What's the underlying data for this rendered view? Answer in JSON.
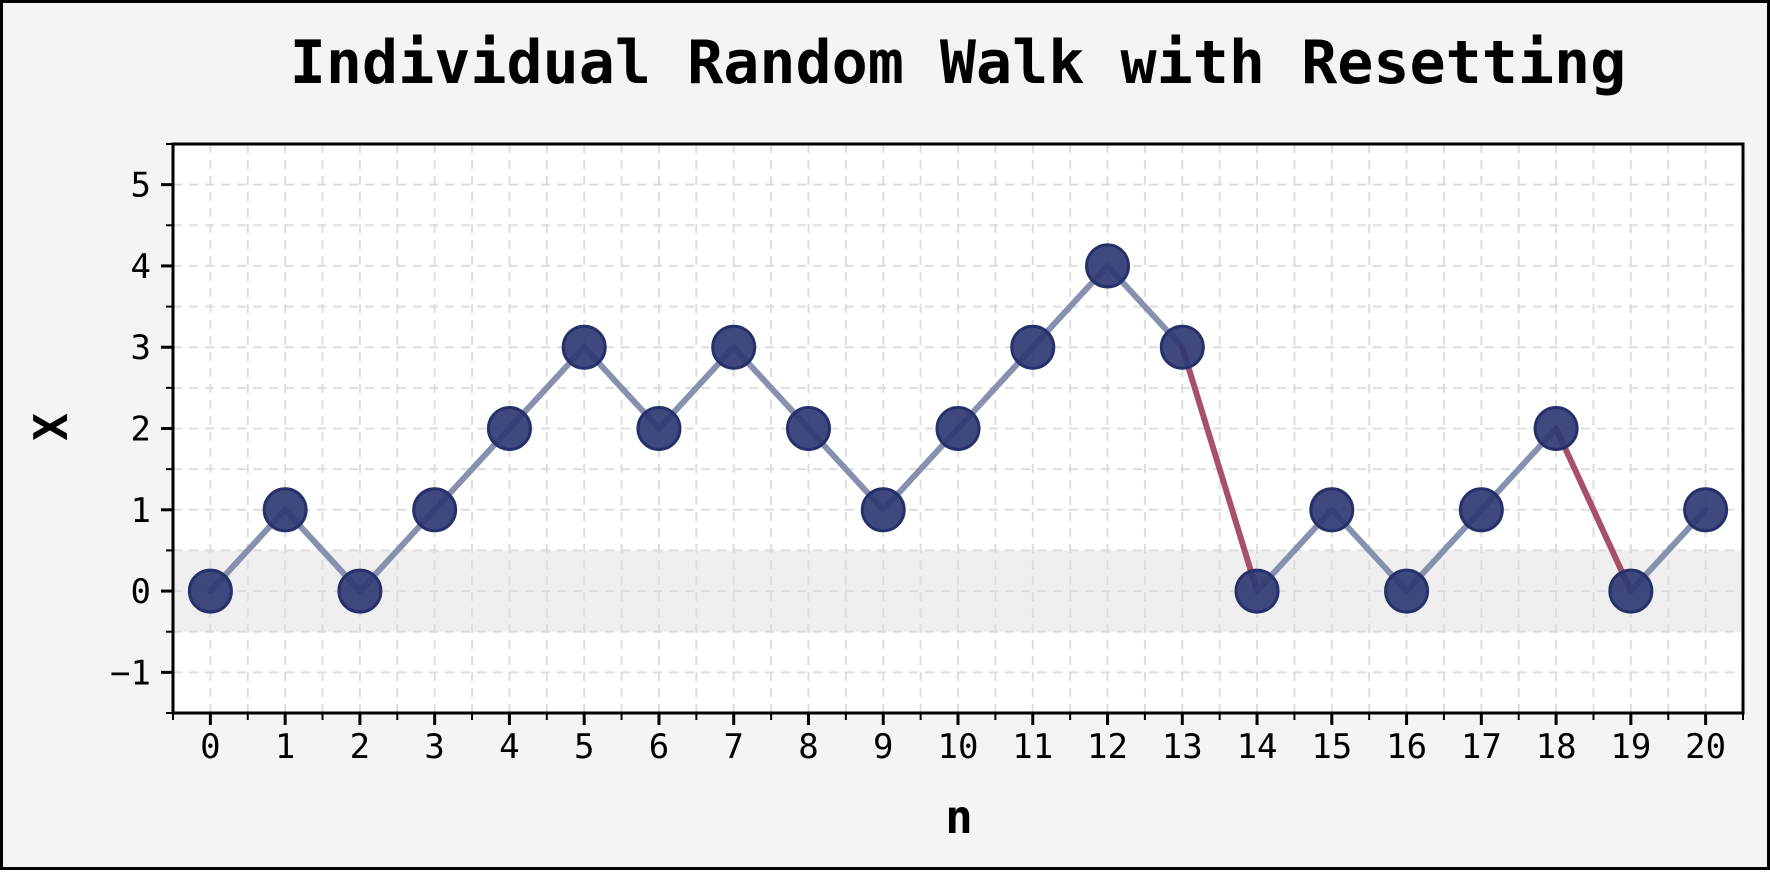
{
  "chart_data": {
    "type": "line",
    "title": "Individual Random Walk with Resetting",
    "xlabel": "n",
    "ylabel": "X",
    "xlim": [
      -0.5,
      20.5
    ],
    "ylim": [
      -1.5,
      5.5
    ],
    "x_ticks": [
      "0",
      "1",
      "2",
      "3",
      "4",
      "5",
      "6",
      "7",
      "8",
      "9",
      "10",
      "11",
      "12",
      "13",
      "14",
      "15",
      "16",
      "17",
      "18",
      "19",
      "20"
    ],
    "y_ticks": [
      "−1",
      "0",
      "1",
      "2",
      "3",
      "4",
      "5"
    ],
    "grid": true,
    "highlight_band": [
      -0.5,
      0.5
    ],
    "series": [
      {
        "x": [
          0,
          1,
          2,
          3,
          4,
          5,
          6,
          7,
          8,
          9,
          10,
          11,
          12,
          13,
          14,
          15,
          16,
          17,
          18,
          19,
          20
        ],
        "values": [
          0,
          1,
          0,
          1,
          2,
          3,
          2,
          3,
          2,
          1,
          2,
          3,
          4,
          3,
          0,
          1,
          0,
          1,
          2,
          0,
          1
        ]
      }
    ],
    "reset_steps": [
      [
        13,
        14
      ],
      [
        18,
        19
      ]
    ],
    "colors": {
      "marker": "#2f3a72",
      "step_line": "#8890b0",
      "reset_line": "#a8506a",
      "band": "#efefef"
    }
  }
}
